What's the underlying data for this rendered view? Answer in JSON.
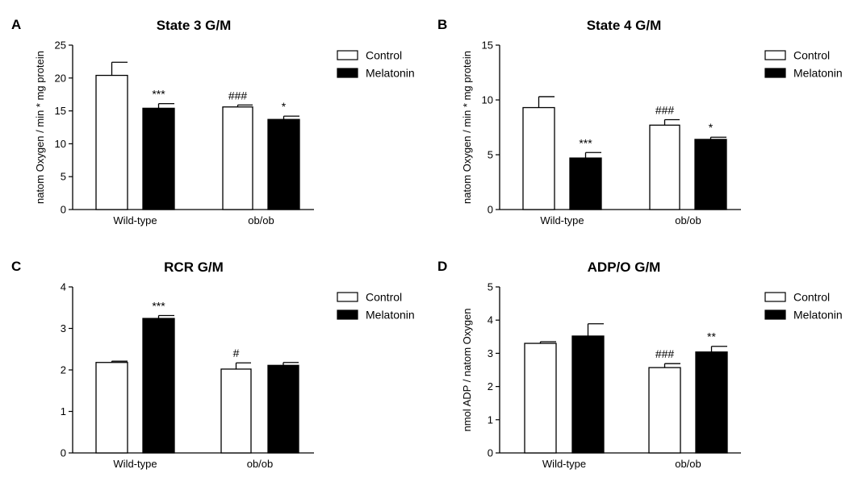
{
  "colors": {
    "control_fill": "#ffffff",
    "melatonin_fill": "#000000",
    "axis": "#000000"
  },
  "chart_data": [
    {
      "type": "bar",
      "panel_label": "A",
      "title": "State 3 G/M",
      "ylabel": "natom Oxygen / min * mg protein",
      "xlabel": "",
      "categories": [
        "Wild-type",
        "ob/ob"
      ],
      "ylim": [
        0,
        25
      ],
      "yticks": [
        0,
        5,
        10,
        15,
        20,
        25
      ],
      "legend_position": "top-right",
      "grid": false,
      "series": [
        {
          "name": "Control",
          "values": [
            20.4,
            15.6
          ],
          "errors": [
            2.0,
            0.3
          ],
          "annotations": [
            "",
            "###"
          ]
        },
        {
          "name": "Melatonin",
          "values": [
            15.4,
            13.7
          ],
          "errors": [
            0.7,
            0.5
          ],
          "annotations": [
            "***",
            "*"
          ]
        }
      ]
    },
    {
      "type": "bar",
      "panel_label": "B",
      "title": "State 4 G/M",
      "ylabel": "natom Oxygen / min * mg protein",
      "xlabel": "",
      "categories": [
        "Wild-type",
        "ob/ob"
      ],
      "ylim": [
        0,
        15
      ],
      "yticks": [
        0,
        5,
        10,
        15
      ],
      "legend_position": "top-right",
      "grid": false,
      "series": [
        {
          "name": "Control",
          "values": [
            9.3,
            7.7
          ],
          "errors": [
            1.0,
            0.5
          ],
          "annotations": [
            "",
            "###"
          ]
        },
        {
          "name": "Melatonin",
          "values": [
            4.7,
            6.4
          ],
          "errors": [
            0.5,
            0.2
          ],
          "annotations": [
            "***",
            "*"
          ]
        }
      ]
    },
    {
      "type": "bar",
      "panel_label": "C",
      "title": "RCR G/M",
      "ylabel": "",
      "xlabel": "",
      "categories": [
        "Wild-type",
        "ob/ob"
      ],
      "ylim": [
        0,
        4
      ],
      "yticks": [
        0,
        1,
        2,
        3,
        4
      ],
      "legend_position": "top-right",
      "grid": false,
      "series": [
        {
          "name": "Control",
          "values": [
            2.18,
            2.02
          ],
          "errors": [
            0.03,
            0.15
          ],
          "annotations": [
            "",
            "#"
          ]
        },
        {
          "name": "Melatonin",
          "values": [
            3.24,
            2.11
          ],
          "errors": [
            0.07,
            0.07
          ],
          "annotations": [
            "***",
            ""
          ]
        }
      ]
    },
    {
      "type": "bar",
      "panel_label": "D",
      "title": "ADP/O G/M",
      "ylabel": "nmol ADP / natom Oxygen",
      "xlabel": "",
      "categories": [
        "Wild-type",
        "ob/ob"
      ],
      "ylim": [
        0,
        5
      ],
      "yticks": [
        0,
        1,
        2,
        3,
        4,
        5
      ],
      "legend_position": "top-right",
      "grid": false,
      "series": [
        {
          "name": "Control",
          "values": [
            3.3,
            2.57
          ],
          "errors": [
            0.05,
            0.12
          ],
          "annotations": [
            "",
            "###"
          ]
        },
        {
          "name": "Melatonin",
          "values": [
            3.52,
            3.04
          ],
          "errors": [
            0.37,
            0.17
          ],
          "annotations": [
            "",
            "**"
          ]
        }
      ]
    }
  ]
}
